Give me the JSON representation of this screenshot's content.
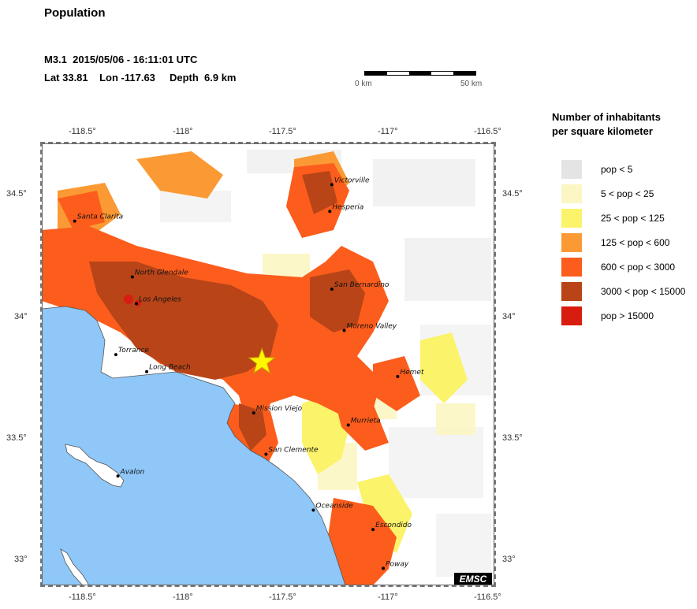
{
  "header": {
    "title": "Population",
    "event_line": "M3.1  2015/05/06 - 16:11:01 UTC",
    "location_line": "Lat 33.81    Lon -117.63     Depth  6.9 km"
  },
  "scale_bar": {
    "left_label": "0 km",
    "right_label": "50 km"
  },
  "map": {
    "lon_ticks": [
      "-118.5°",
      "-118°",
      "-117.5°",
      "-117°",
      "-116.5°"
    ],
    "lat_ticks": [
      "34.5°",
      "34°",
      "33.5°",
      "33°"
    ],
    "epicenter": {
      "lat": 33.81,
      "lon": -117.63
    },
    "cities": [
      {
        "name": "Victorville",
        "lat": 34.54,
        "lon": -117.29
      },
      {
        "name": "Hesperia",
        "lat": 34.43,
        "lon": -117.3
      },
      {
        "name": "Santa Clarita",
        "lat": 34.39,
        "lon": -118.54
      },
      {
        "name": "North Glendale",
        "lat": 34.16,
        "lon": -118.26
      },
      {
        "name": "Los Angeles",
        "lat": 34.05,
        "lon": -118.24
      },
      {
        "name": "San Bernardino",
        "lat": 34.11,
        "lon": -117.29
      },
      {
        "name": "Moreno Valley",
        "lat": 33.94,
        "lon": -117.23
      },
      {
        "name": "Torrance",
        "lat": 33.84,
        "lon": -118.34
      },
      {
        "name": "Long Beach",
        "lat": 33.77,
        "lon": -118.19
      },
      {
        "name": "Hemet",
        "lat": 33.75,
        "lon": -116.97
      },
      {
        "name": "Mission Viejo",
        "lat": 33.6,
        "lon": -117.67
      },
      {
        "name": "Murrieta",
        "lat": 33.55,
        "lon": -117.21
      },
      {
        "name": "San Clemente",
        "lat": 33.43,
        "lon": -117.61
      },
      {
        "name": "Avalon",
        "lat": 33.34,
        "lon": -118.33
      },
      {
        "name": "Oceanside",
        "lat": 33.2,
        "lon": -117.38
      },
      {
        "name": "Escondido",
        "lat": 33.12,
        "lon": -117.09
      },
      {
        "name": "Poway",
        "lat": 32.96,
        "lon": -117.04
      }
    ],
    "watermark": "EMSC"
  },
  "legend": {
    "title_line1": "Number of inhabitants",
    "title_line2": "per square kilometer",
    "items": [
      {
        "label": "pop < 5",
        "color": "#e4e4e4"
      },
      {
        "label": "5 < pop < 25",
        "color": "#fbf6c3"
      },
      {
        "label": "25 < pop < 125",
        "color": "#fbf36a"
      },
      {
        "label": "125 < pop < 600",
        "color": "#fb9a34"
      },
      {
        "label": "600 < pop < 3000",
        "color": "#fc5d1c"
      },
      {
        "label": "3000 < pop < 15000",
        "color": "#b84418"
      },
      {
        "label": "pop > 15000",
        "color": "#d81c10"
      }
    ]
  }
}
